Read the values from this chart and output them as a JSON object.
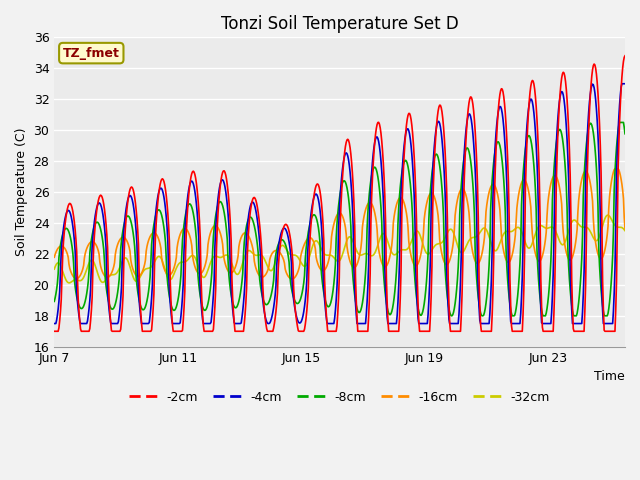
{
  "title": "Tonzi Soil Temperature Set D",
  "xlabel": "Time",
  "ylabel": "Soil Temperature (C)",
  "ylim": [
    16,
    36
  ],
  "yticks": [
    16,
    18,
    20,
    22,
    24,
    26,
    28,
    30,
    32,
    34,
    36
  ],
  "xtick_labels": [
    "Jun 7",
    "Jun 11",
    "Jun 15",
    "Jun 19",
    "Jun 23"
  ],
  "xtick_positions": [
    0,
    4,
    8,
    12,
    16
  ],
  "annotation_text": "TZ_fmet",
  "annotation_color": "#8B0000",
  "annotation_bg": "#FFFACD",
  "annotation_border": "#999900",
  "line_colors": {
    "-2cm": "#FF0000",
    "-4cm": "#0000CC",
    "-8cm": "#00AA00",
    "-16cm": "#FF8C00",
    "-32cm": "#CCCC00"
  },
  "bg_color": "#EBEBEB",
  "plot_bg_color": "#EBEBEB",
  "total_days": 18.5,
  "legend_dash": [
    4,
    2
  ]
}
